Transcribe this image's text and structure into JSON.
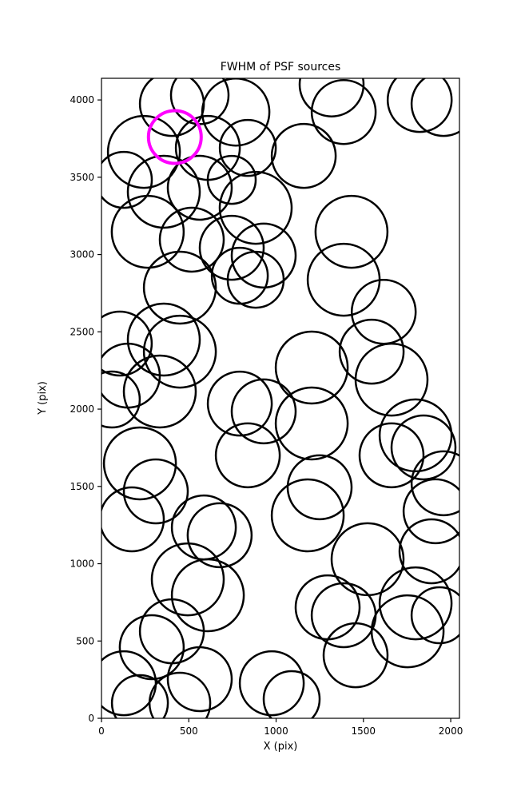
{
  "figure": {
    "title": "FWHM of PSF sources",
    "xlabel": "X (pix)",
    "ylabel": "Y (pix)"
  },
  "chart_data": {
    "type": "scatter",
    "title": "FWHM of PSF sources",
    "xlabel": "X (pix)",
    "ylabel": "Y (pix)",
    "xlim": [
      0,
      2050
    ],
    "ylim": [
      0,
      4140
    ],
    "xticks": [
      0,
      500,
      1000,
      1500,
      2000
    ],
    "yticks": [
      0,
      500,
      1000,
      1500,
      2000,
      2500,
      3000,
      3500,
      4000
    ],
    "grid": false,
    "legend": "none",
    "marker": "circle-outline",
    "circle_color": "#000000",
    "circle_stroke_px": 2.5,
    "highlight_color": "#ff00ff",
    "highlight_stroke_px": 4,
    "circles": [
      {
        "x": 403,
        "y": 3974,
        "r": 40
      },
      {
        "x": 563,
        "y": 4030,
        "r": 36
      },
      {
        "x": 769,
        "y": 3922,
        "r": 42
      },
      {
        "x": 243,
        "y": 3664,
        "r": 45
      },
      {
        "x": 609,
        "y": 3690,
        "r": 40
      },
      {
        "x": 838,
        "y": 3690,
        "r": 35
      },
      {
        "x": 1318,
        "y": 4100,
        "r": 40
      },
      {
        "x": 1387,
        "y": 3922,
        "r": 40
      },
      {
        "x": 1822,
        "y": 4000,
        "r": 40
      },
      {
        "x": 1959,
        "y": 3974,
        "r": 40
      },
      {
        "x": 1158,
        "y": 3638,
        "r": 40
      },
      {
        "x": 128,
        "y": 3483,
        "r": 35
      },
      {
        "x": 357,
        "y": 3406,
        "r": 45
      },
      {
        "x": 563,
        "y": 3432,
        "r": 40
      },
      {
        "x": 746,
        "y": 3483,
        "r": 30
      },
      {
        "x": 883,
        "y": 3302,
        "r": 45
      },
      {
        "x": 265,
        "y": 3147,
        "r": 45
      },
      {
        "x": 517,
        "y": 3096,
        "r": 40
      },
      {
        "x": 746,
        "y": 3044,
        "r": 40
      },
      {
        "x": 929,
        "y": 2993,
        "r": 40
      },
      {
        "x": 1432,
        "y": 3147,
        "r": 45
      },
      {
        "x": 1387,
        "y": 2837,
        "r": 45
      },
      {
        "x": 449,
        "y": 2786,
        "r": 45
      },
      {
        "x": 792,
        "y": 2863,
        "r": 35
      },
      {
        "x": 883,
        "y": 2837,
        "r": 35
      },
      {
        "x": 1616,
        "y": 2630,
        "r": 40
      },
      {
        "x": 1547,
        "y": 2372,
        "r": 40
      },
      {
        "x": 105,
        "y": 2424,
        "r": 40
      },
      {
        "x": 357,
        "y": 2450,
        "r": 45
      },
      {
        "x": 449,
        "y": 2372,
        "r": 45
      },
      {
        "x": 151,
        "y": 2217,
        "r": 40
      },
      {
        "x": 334,
        "y": 2114,
        "r": 45
      },
      {
        "x": 59,
        "y": 2062,
        "r": 35
      },
      {
        "x": 1204,
        "y": 2269,
        "r": 45
      },
      {
        "x": 1661,
        "y": 2191,
        "r": 45
      },
      {
        "x": 792,
        "y": 2036,
        "r": 40
      },
      {
        "x": 929,
        "y": 1985,
        "r": 40
      },
      {
        "x": 1204,
        "y": 1907,
        "r": 45
      },
      {
        "x": 1799,
        "y": 1830,
        "r": 45
      },
      {
        "x": 220,
        "y": 1649,
        "r": 45
      },
      {
        "x": 311,
        "y": 1468,
        "r": 40
      },
      {
        "x": 838,
        "y": 1701,
        "r": 40
      },
      {
        "x": 1249,
        "y": 1494,
        "r": 40
      },
      {
        "x": 1181,
        "y": 1313,
        "r": 45
      },
      {
        "x": 1661,
        "y": 1701,
        "r": 40
      },
      {
        "x": 1844,
        "y": 1752,
        "r": 40
      },
      {
        "x": 1959,
        "y": 1520,
        "r": 40
      },
      {
        "x": 1913,
        "y": 1339,
        "r": 40
      },
      {
        "x": 174,
        "y": 1287,
        "r": 40
      },
      {
        "x": 586,
        "y": 1235,
        "r": 40
      },
      {
        "x": 677,
        "y": 1184,
        "r": 40
      },
      {
        "x": 1524,
        "y": 1029,
        "r": 45
      },
      {
        "x": 1890,
        "y": 1080,
        "r": 40
      },
      {
        "x": 494,
        "y": 899,
        "r": 45
      },
      {
        "x": 609,
        "y": 796,
        "r": 45
      },
      {
        "x": 1295,
        "y": 718,
        "r": 40
      },
      {
        "x": 1387,
        "y": 667,
        "r": 40
      },
      {
        "x": 1799,
        "y": 744,
        "r": 45
      },
      {
        "x": 1753,
        "y": 563,
        "r": 45
      },
      {
        "x": 1936,
        "y": 667,
        "r": 35
      },
      {
        "x": 403,
        "y": 563,
        "r": 40
      },
      {
        "x": 288,
        "y": 460,
        "r": 40
      },
      {
        "x": 563,
        "y": 253,
        "r": 40
      },
      {
        "x": 975,
        "y": 227,
        "r": 40
      },
      {
        "x": 128,
        "y": 227,
        "r": 40
      },
      {
        "x": 220,
        "y": 98,
        "r": 35
      },
      {
        "x": 449,
        "y": 98,
        "r": 38
      },
      {
        "x": 1089,
        "y": 124,
        "r": 35
      },
      {
        "x": 1455,
        "y": 408,
        "r": 40
      }
    ],
    "highlight": {
      "x": 420,
      "y": 3760,
      "r": 33
    }
  }
}
